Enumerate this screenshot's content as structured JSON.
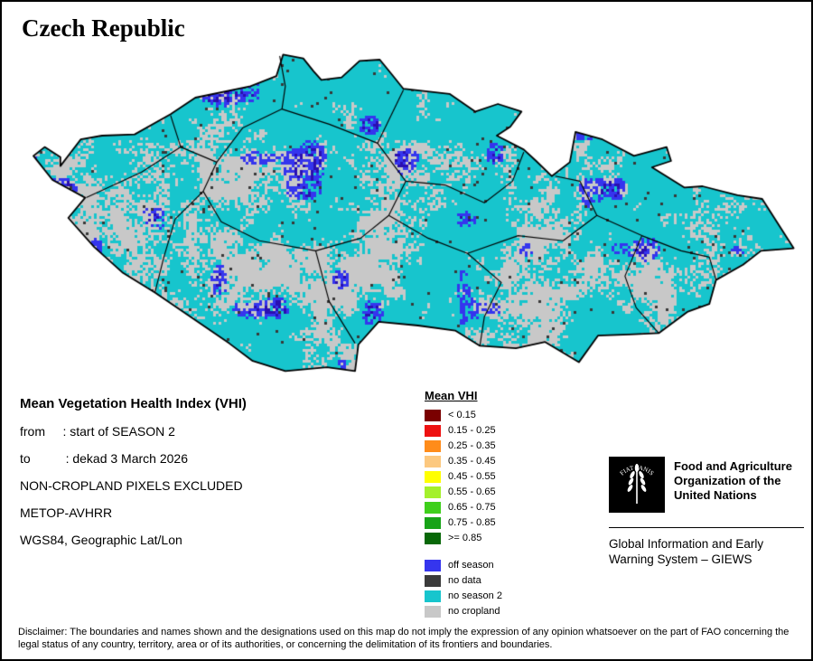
{
  "page": {
    "title": "Czech Republic"
  },
  "info": {
    "heading": "Mean Vegetation Health Index (VHI)",
    "lines": [
      "from     : start of SEASON 2",
      "to          : dekad 3 March 2026",
      "NON-CROPLAND PIXELS EXCLUDED",
      "METOP-AVHRR",
      "WGS84, Geographic Lat/Lon"
    ]
  },
  "legend": {
    "title": "Mean VHI",
    "classes": [
      {
        "label": "< 0.15",
        "color": "#7a0000"
      },
      {
        "label": "0.15 - 0.25",
        "color": "#ee1111"
      },
      {
        "label": "0.25 - 0.35",
        "color": "#ff8c1a"
      },
      {
        "label": "0.35 - 0.45",
        "color": "#fcc87f"
      },
      {
        "label": "0.45 - 0.55",
        "color": "#ffff00"
      },
      {
        "label": "0.55 - 0.65",
        "color": "#a4f02c"
      },
      {
        "label": "0.65 - 0.75",
        "color": "#3ecf1b"
      },
      {
        "label": "0.75 - 0.85",
        "color": "#17a317"
      },
      {
        "label": ">= 0.85",
        "color": "#086808"
      }
    ],
    "extra": [
      {
        "label": "off season",
        "color": "#3535ee"
      },
      {
        "label": "no data",
        "color": "#3b3b3b"
      },
      {
        "label": "no season 2",
        "color": "#17c5cd"
      },
      {
        "label": "no cropland",
        "color": "#c8c8c8"
      }
    ]
  },
  "map": {
    "colors": {
      "no_season2": "#17c5cd",
      "no_cropland": "#c8c8c8",
      "off_season": "#3535ee",
      "off_season_dense": "#2a0fb0",
      "no_data": "#383838",
      "boundary": "#000000"
    }
  },
  "fao": {
    "org_name": "Food and Agriculture\nOrganization of the\nUnited Nations",
    "giews": "Global Information and Early\nWarning System – GIEWS",
    "logo_motto": "FIAT PANIS"
  },
  "disclaimer": "Disclaimer: The boundaries and names shown and the designations used on this map do not imply the expression of any opinion whatsoever on the part of FAO concerning the legal status of any country, territory, area or of its authorities, or concerning the delimitation of its frontiers and boundaries."
}
